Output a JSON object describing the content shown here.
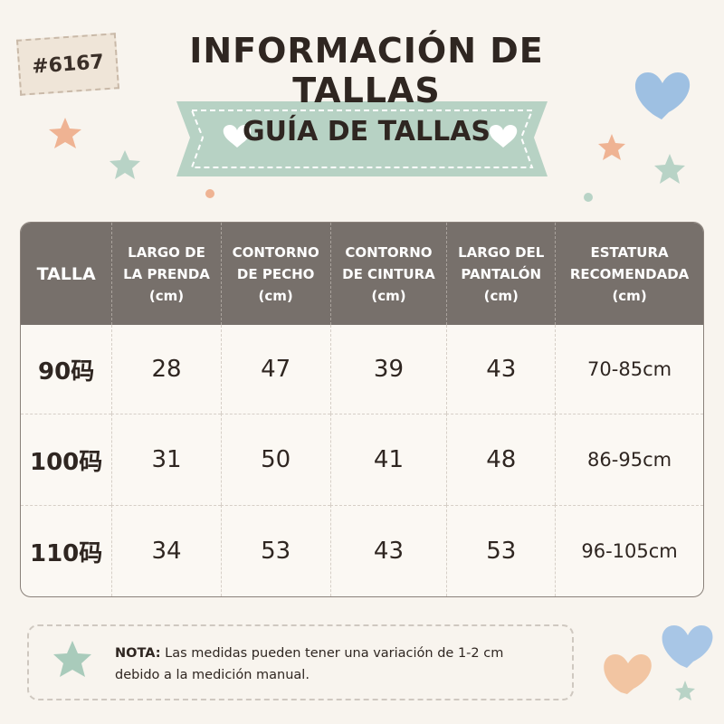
{
  "tag": "#6167",
  "title": "INFORMACIÓN DE TALLAS",
  "subtitle": "GUÍA DE TALLAS",
  "table": {
    "header": [
      [
        "TALLA"
      ],
      [
        "LARGO DE",
        "LA PRENDA",
        "(cm)"
      ],
      [
        "CONTORNO",
        "DE PECHO",
        "(cm)"
      ],
      [
        "CONTORNO",
        "DE CINTURA",
        "(cm)"
      ],
      [
        "LARGO DEL",
        "PANTALÓN",
        "(cm)"
      ],
      [
        "ESTATURA",
        "RECOMENDADA",
        "(cm)"
      ]
    ],
    "rows": [
      [
        "90码",
        28,
        47,
        39,
        43,
        "70-85cm"
      ],
      [
        "100码",
        31,
        50,
        41,
        48,
        "86-95cm"
      ],
      [
        "110码",
        34,
        53,
        43,
        53,
        "96-105cm"
      ]
    ]
  },
  "note": {
    "label": "NOTA:",
    "text": "Las medidas pueden tener una variación de 1-2 cm debido a la medición manual."
  }
}
